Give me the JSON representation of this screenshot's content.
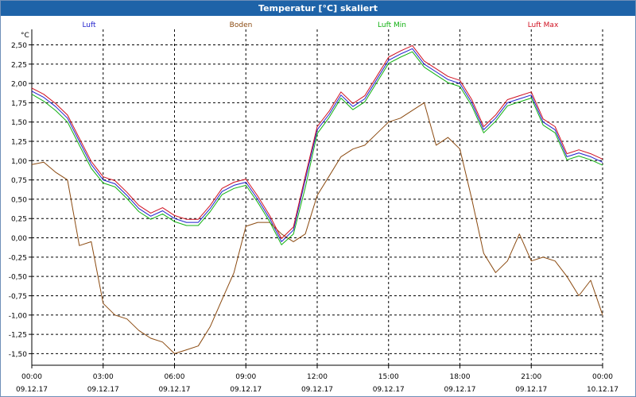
{
  "window": {
    "title": "Temperatur [°C] skaliert"
  },
  "chart_data": {
    "type": "line",
    "title": "Temperatur [°C] skaliert",
    "ylabel": "°C",
    "xlabel": "",
    "ylim": [
      -1.65,
      2.7
    ],
    "xlim": [
      0,
      24
    ],
    "grid": true,
    "legend_placement": "top",
    "y_ticks": [
      "2,50",
      "2,25",
      "2,00",
      "1,75",
      "1,50",
      "1,25",
      "1,00",
      "0,75",
      "0,50",
      "0,25",
      "0,00",
      "-0,25",
      "-0,50",
      "-0,75",
      "-1,00",
      "-1,25",
      "-1,50"
    ],
    "y_tick_values": [
      2.5,
      2.25,
      2.0,
      1.75,
      1.5,
      1.25,
      1.0,
      0.75,
      0.5,
      0.25,
      0.0,
      -0.25,
      -0.5,
      -0.75,
      -1.0,
      -1.25,
      -1.5
    ],
    "x_ticks": [
      {
        "time": "00:00",
        "date": "09.12.17",
        "hour": 0
      },
      {
        "time": "03:00",
        "date": "09.12.17",
        "hour": 3
      },
      {
        "time": "06:00",
        "date": "09.12.17",
        "hour": 6
      },
      {
        "time": "09:00",
        "date": "09.12.17",
        "hour": 9
      },
      {
        "time": "12:00",
        "date": "09.12.17",
        "hour": 12
      },
      {
        "time": "15:00",
        "date": "09.12.17",
        "hour": 15
      },
      {
        "time": "18:00",
        "date": "09.12.17",
        "hour": 18
      },
      {
        "time": "21:00",
        "date": "09.12.17",
        "hour": 21
      },
      {
        "time": "00:00",
        "date": "10.12.17",
        "hour": 24
      }
    ],
    "series": [
      {
        "name": "Luft",
        "color": "#1f1fcc",
        "x": [
          0,
          0.5,
          1,
          1.5,
          2,
          2.5,
          3,
          3.5,
          4,
          4.5,
          5,
          5.5,
          6,
          6.5,
          7,
          7.5,
          8,
          8.5,
          9,
          9.5,
          10,
          10.5,
          11,
          11.5,
          12,
          12.5,
          13,
          13.5,
          14,
          14.5,
          15,
          15.5,
          16,
          16.5,
          17,
          17.5,
          18,
          18.5,
          19,
          19.5,
          20,
          20.5,
          21,
          21.5,
          22,
          22.5,
          23,
          23.5,
          24
        ],
        "values": [
          1.9,
          1.82,
          1.7,
          1.55,
          1.25,
          0.95,
          0.75,
          0.7,
          0.55,
          0.38,
          0.28,
          0.35,
          0.25,
          0.2,
          0.2,
          0.38,
          0.6,
          0.68,
          0.72,
          0.5,
          0.25,
          -0.05,
          0.1,
          0.75,
          1.4,
          1.6,
          1.85,
          1.7,
          1.8,
          2.05,
          2.3,
          2.38,
          2.45,
          2.25,
          2.15,
          2.05,
          2.0,
          1.75,
          1.4,
          1.55,
          1.75,
          1.8,
          1.85,
          1.5,
          1.4,
          1.05,
          1.1,
          1.05,
          0.98
        ]
      },
      {
        "name": "Boden",
        "color": "#8b4a10",
        "x": [
          0,
          0.5,
          1,
          1.5,
          2,
          2.5,
          3,
          3.5,
          4,
          4.5,
          5,
          5.5,
          6,
          6.5,
          7,
          7.5,
          8,
          8.5,
          9,
          9.5,
          10,
          10.5,
          11,
          11.5,
          12,
          12.5,
          13,
          13.5,
          14,
          14.5,
          15,
          15.5,
          16,
          16.5,
          17,
          17.5,
          18,
          18.5,
          19,
          19.5,
          20,
          20.5,
          21,
          21.5,
          22,
          22.5,
          23,
          23.5,
          24
        ],
        "values": [
          0.95,
          0.98,
          0.85,
          0.75,
          -0.1,
          -0.05,
          -0.85,
          -1.0,
          -1.05,
          -1.2,
          -1.3,
          -1.35,
          -1.5,
          -1.45,
          -1.4,
          -1.15,
          -0.8,
          -0.45,
          0.15,
          0.2,
          0.2,
          0.05,
          -0.05,
          0.05,
          0.55,
          0.8,
          1.05,
          1.15,
          1.2,
          1.35,
          1.5,
          1.55,
          1.65,
          1.75,
          1.2,
          1.3,
          1.15,
          0.5,
          -0.2,
          -0.45,
          -0.3,
          0.05,
          -0.3,
          -0.25,
          -0.3,
          -0.5,
          -0.75,
          -0.55,
          -1.0
        ]
      },
      {
        "name": "Luft Min",
        "color": "#10b010",
        "x": [
          0,
          0.5,
          1,
          1.5,
          2,
          2.5,
          3,
          3.5,
          4,
          4.5,
          5,
          5.5,
          6,
          6.5,
          7,
          7.5,
          8,
          8.5,
          9,
          9.5,
          10,
          10.5,
          11,
          11.5,
          12,
          12.5,
          13,
          13.5,
          14,
          14.5,
          15,
          15.5,
          16,
          16.5,
          17,
          17.5,
          18,
          18.5,
          19,
          19.5,
          20,
          20.5,
          21,
          21.5,
          22,
          22.5,
          23,
          23.5,
          24
        ],
        "values": [
          1.86,
          1.77,
          1.65,
          1.5,
          1.2,
          0.9,
          0.71,
          0.66,
          0.51,
          0.34,
          0.24,
          0.31,
          0.21,
          0.16,
          0.16,
          0.34,
          0.56,
          0.64,
          0.68,
          0.46,
          0.21,
          -0.09,
          0.05,
          0.65,
          1.35,
          1.56,
          1.81,
          1.66,
          1.76,
          2.01,
          2.26,
          2.34,
          2.41,
          2.21,
          2.11,
          2.01,
          1.96,
          1.71,
          1.36,
          1.51,
          1.71,
          1.76,
          1.81,
          1.46,
          1.36,
          1.01,
          1.06,
          1.01,
          0.94
        ]
      },
      {
        "name": "Luft Max",
        "color": "#d01020",
        "x": [
          0,
          0.5,
          1,
          1.5,
          2,
          2.5,
          3,
          3.5,
          4,
          4.5,
          5,
          5.5,
          6,
          6.5,
          7,
          7.5,
          8,
          8.5,
          9,
          9.5,
          10,
          10.5,
          11,
          11.5,
          12,
          12.5,
          13,
          13.5,
          14,
          14.5,
          15,
          15.5,
          16,
          16.5,
          17,
          17.5,
          18,
          18.5,
          19,
          19.5,
          20,
          20.5,
          21,
          21.5,
          22,
          22.5,
          23,
          23.5,
          24
        ],
        "values": [
          1.94,
          1.86,
          1.74,
          1.59,
          1.29,
          0.99,
          0.79,
          0.74,
          0.59,
          0.42,
          0.32,
          0.39,
          0.29,
          0.24,
          0.24,
          0.42,
          0.64,
          0.72,
          0.76,
          0.54,
          0.29,
          -0.01,
          0.14,
          0.8,
          1.44,
          1.64,
          1.89,
          1.74,
          1.84,
          2.09,
          2.34,
          2.42,
          2.49,
          2.29,
          2.19,
          2.09,
          2.04,
          1.79,
          1.44,
          1.59,
          1.79,
          1.84,
          1.89,
          1.54,
          1.44,
          1.09,
          1.14,
          1.09,
          1.02
        ]
      }
    ]
  }
}
